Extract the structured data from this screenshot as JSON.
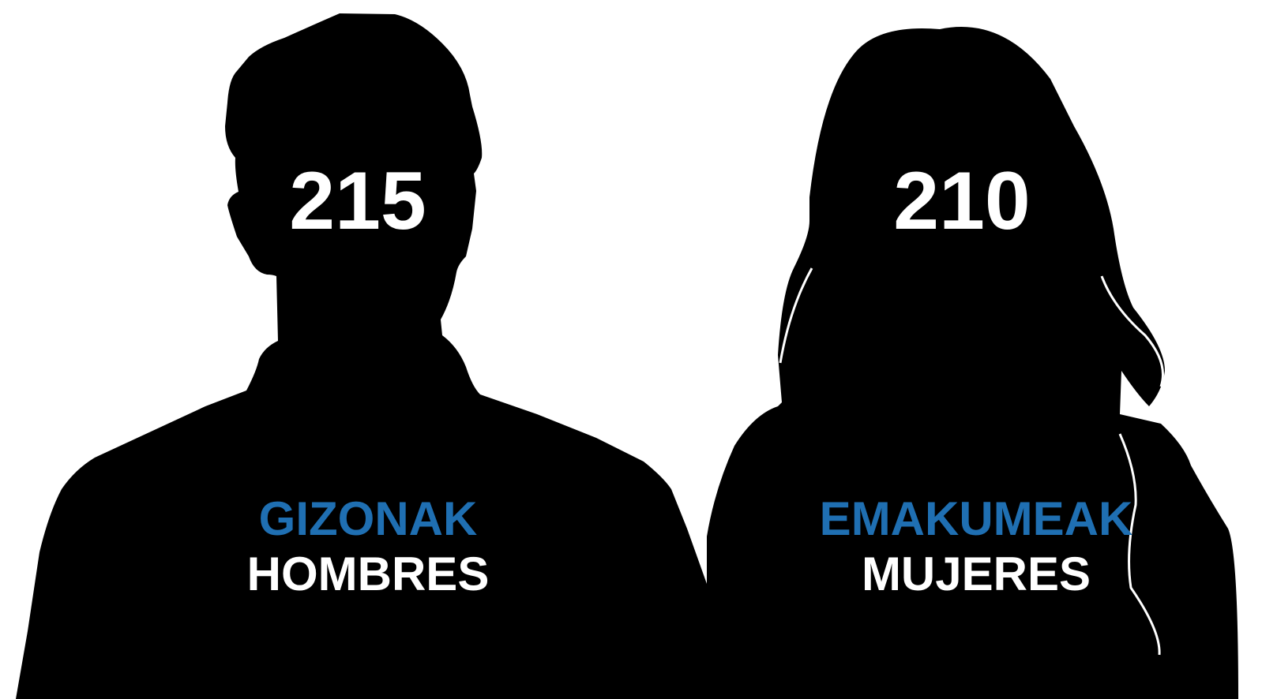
{
  "groups": [
    {
      "count": 215,
      "label_eu": "GIZONAK",
      "label_es": "HOMBRES"
    },
    {
      "count": 210,
      "label_eu": "EMAKUMEAK",
      "label_es": "MUJERES"
    }
  ]
}
